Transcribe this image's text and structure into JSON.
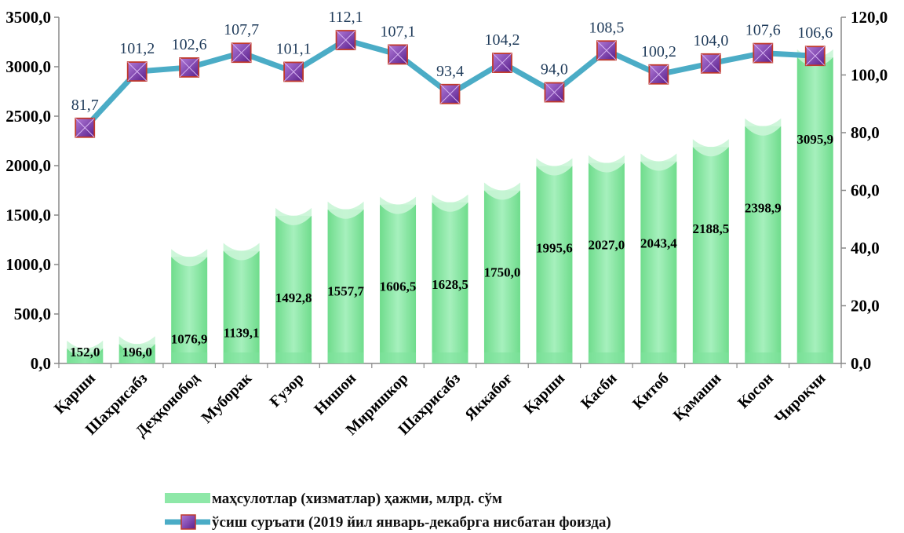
{
  "chart_data": {
    "type": "bar",
    "categories": [
      "Қарши",
      "Шахрисабз",
      "Деҳқонобод",
      "Муборак",
      "Ғузор",
      "Нишон",
      "Миришкор",
      "Шахрисабз",
      "Яккабоғ",
      "Қарши",
      "Касби",
      "Китоб",
      "Қамаши",
      "Косон",
      "Чироқчи"
    ],
    "series": [
      {
        "name": "маҳсулотлар (хизматлар) ҳажми, млрд. сўм",
        "type": "bar",
        "axis": "left",
        "values": [
          152.0,
          196.0,
          1076.9,
          1139.1,
          1492.8,
          1557.7,
          1606.5,
          1628.5,
          1750.0,
          1995.6,
          2027.0,
          2043.4,
          2188.5,
          2398.9,
          3095.9
        ],
        "labels": [
          "152,0",
          "196,0",
          "1076,9",
          "1139,1",
          "1492,8",
          "1557,7",
          "1606,5",
          "1628,5",
          "1750,0",
          "1995,6",
          "2027,0",
          "2043,4",
          "2188,5",
          "2398,9",
          "3095,9"
        ],
        "color": "#8ee8a8"
      },
      {
        "name": "ўсиш суръати (2019 йил январь-декабрга нисбатан фоизда)",
        "type": "line",
        "axis": "right",
        "values": [
          81.7,
          101.2,
          102.6,
          107.7,
          101.1,
          112.1,
          107.1,
          93.4,
          104.2,
          94.0,
          108.5,
          100.2,
          104.0,
          107.6,
          106.6
        ],
        "labels": [
          "81,7",
          "101,2",
          "102,6",
          "107,7",
          "101,1",
          "112,1",
          "107,1",
          "93,4",
          "104,2",
          "94,0",
          "108,5",
          "100,2",
          "104,0",
          "107,6",
          "106,6"
        ],
        "color": "#4bacc6",
        "marker_color": "#7030a0"
      }
    ],
    "ylim_left": [
      0,
      3500
    ],
    "ylim_right": [
      0,
      120
    ],
    "yticks_left": [
      "0,0",
      "500,0",
      "1000,0",
      "1500,0",
      "2000,0",
      "2500,0",
      "3000,0",
      "3500,0"
    ],
    "yticks_right": [
      "0,0",
      "20,0",
      "40,0",
      "60,0",
      "80,0",
      "100,0",
      "120,0"
    ],
    "legend_position": "bottom"
  }
}
